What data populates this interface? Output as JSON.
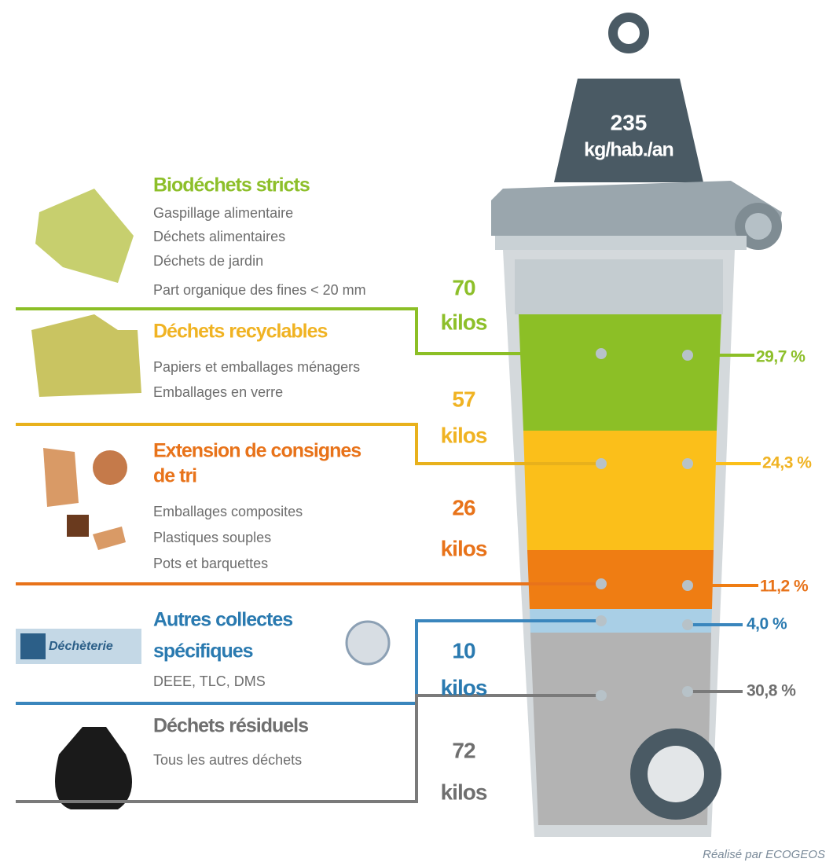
{
  "weight": {
    "value": "235",
    "unit": "kg/hab./an"
  },
  "categories": [
    {
      "title": "Biodéchets stricts",
      "items": [
        "Gaspillage alimentaire",
        "Déchets alimentaires",
        "Déchets de jardin",
        "Part organique des fines < 20 mm"
      ],
      "amount": "70",
      "unit": "kilos",
      "share": "29,7 %"
    },
    {
      "title": "Déchets recyclables",
      "items": [
        "Papiers et emballages ménagers",
        "Emballages en verre"
      ],
      "amount": "57",
      "unit": "kilos",
      "share": "24,3 %"
    },
    {
      "title": [
        "Extension de consignes",
        "de tri"
      ],
      "items": [
        "Emballages composites",
        "Plastiques souples",
        "Pots et barquettes"
      ],
      "amount": "26",
      "unit": "kilos",
      "share": "11,2 %"
    },
    {
      "title": [
        "Autres collectes",
        "spécifiques"
      ],
      "badge": "Déchèterie",
      "items": [
        "DEEE, TLC, DMS"
      ],
      "amount": "10",
      "unit": "kilos",
      "share": "4,0 %"
    },
    {
      "title": "Déchets résiduels",
      "items": [
        "Tous les autres déchets"
      ],
      "amount": "72",
      "unit": "kilos",
      "share": "30,8 %"
    }
  ],
  "credit": "Réalisé par ECOGEOS"
}
